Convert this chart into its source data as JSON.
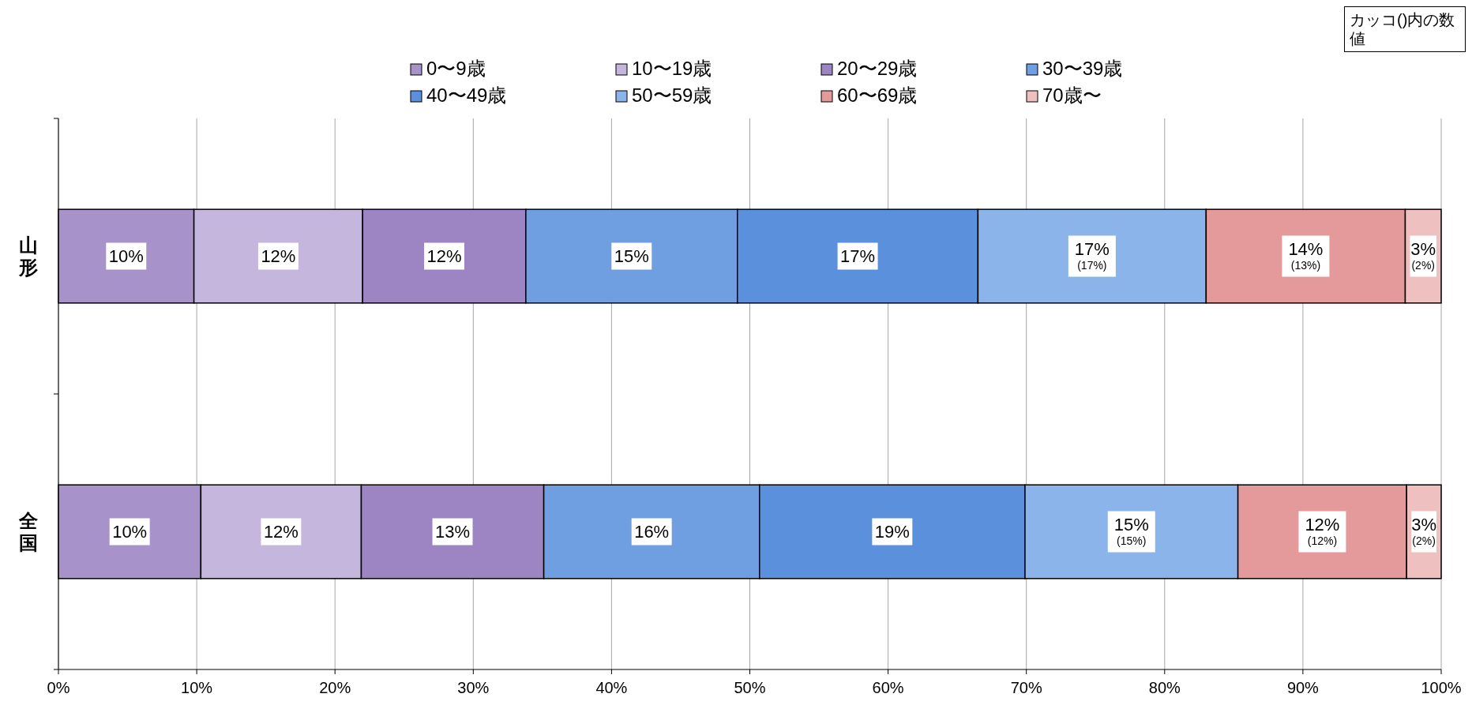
{
  "chart_data": {
    "type": "bar",
    "orientation": "horizontal",
    "stacked": true,
    "categories": [
      "山形",
      "全国"
    ],
    "xlim": [
      0,
      100
    ],
    "xticks": [
      {
        "value": 0,
        "label": "0%"
      },
      {
        "value": 10,
        "label": "10%"
      },
      {
        "value": 20,
        "label": "20%"
      },
      {
        "value": 30,
        "label": "30%"
      },
      {
        "value": 40,
        "label": "40%"
      },
      {
        "value": 50,
        "label": "50%"
      },
      {
        "value": 60,
        "label": "60%"
      },
      {
        "value": 70,
        "label": "70%"
      },
      {
        "value": 80,
        "label": "80%"
      },
      {
        "value": 90,
        "label": "90%"
      },
      {
        "value": 100,
        "label": "100%"
      }
    ],
    "grid": "x",
    "legend": "top",
    "series": [
      {
        "name": "0〜9歳",
        "color": "#a792c9",
        "values": [
          9.8,
          10.3
        ],
        "value_labels": [
          "10%",
          "10%"
        ]
      },
      {
        "name": "10〜19歳",
        "color": "#c4b6dc",
        "values": [
          12.2,
          11.6
        ],
        "value_labels": [
          "12%",
          "12%"
        ]
      },
      {
        "name": "20〜29歳",
        "color": "#9c85c2",
        "values": [
          11.8,
          13.2
        ],
        "value_labels": [
          "12%",
          "13%"
        ]
      },
      {
        "name": "30〜39歳",
        "color": "#6f9fe0",
        "values": [
          15.3,
          15.6
        ],
        "value_labels": [
          "15%",
          "16%"
        ]
      },
      {
        "name": "40〜49歳",
        "color": "#5b91dc",
        "values": [
          17.4,
          19.2
        ],
        "value_labels": [
          "17%",
          "19%"
        ]
      },
      {
        "name": "50〜59歳",
        "color": "#8ab4ea",
        "values": [
          16.5,
          15.4
        ],
        "value_labels": [
          "17%\n(17%)",
          "15%\n(15%)"
        ]
      },
      {
        "name": "60〜69歳",
        "color": "#e49a9a",
        "values": [
          14.4,
          12.2
        ],
        "value_labels": [
          "14%\n(13%)",
          "12%\n(12%)"
        ]
      },
      {
        "name": "70歳〜",
        "color": "#efc0c0",
        "values": [
          2.6,
          2.5
        ],
        "value_labels": [
          "3%\n(2%)",
          "3%\n(2%)"
        ]
      }
    ],
    "annotations": [
      "カッコ()内の数値"
    ]
  }
}
